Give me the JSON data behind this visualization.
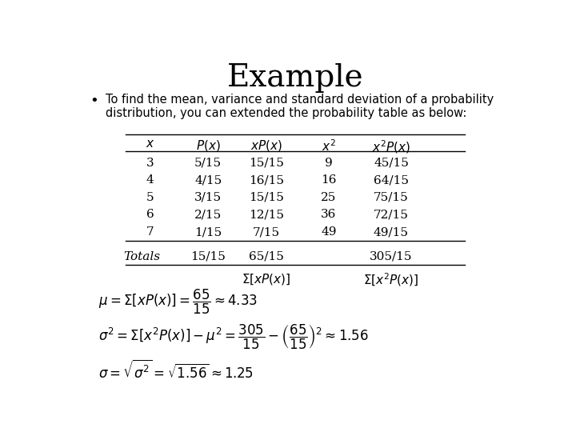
{
  "title": "Example",
  "bullet_text": "To find the mean, variance and standard deviation of a probability\ndistribution, you can extended the probability table as below:",
  "rows": [
    [
      "3",
      "5/15",
      "15/15",
      "9",
      "45/15"
    ],
    [
      "4",
      "4/15",
      "16/15",
      "16",
      "64/15"
    ],
    [
      "5",
      "3/15",
      "15/15",
      "25",
      "75/15"
    ],
    [
      "6",
      "2/15",
      "12/15",
      "36",
      "72/15"
    ],
    [
      "7",
      "1/15",
      "7/15",
      "49",
      "49/15"
    ]
  ],
  "totals_label": "Totals",
  "totals_row": [
    "",
    "15/15",
    "65/15",
    "",
    "305/15"
  ],
  "bg_color": "#ffffff",
  "text_color": "#000000",
  "title_fontsize": 28,
  "table_fontsize": 11
}
